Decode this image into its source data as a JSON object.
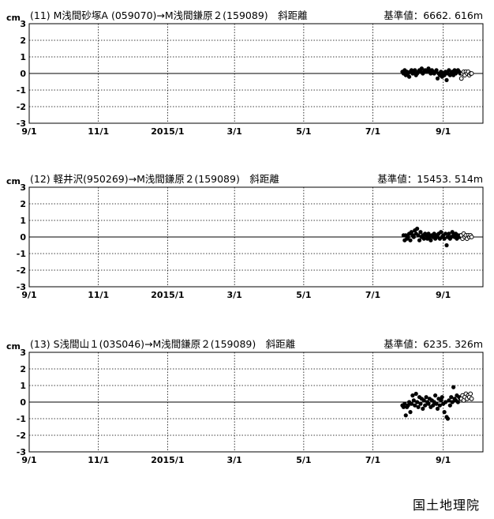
{
  "footer": "国土地理院",
  "x_tick_labels": [
    "9/1",
    "11/1",
    "2015/1",
    "3/1",
    "5/1",
    "7/1",
    "9/1"
  ],
  "chart_data": [
    {
      "type": "scatter",
      "unit": "cm",
      "header": "(11)  M浅間砂塚A (059070)→M浅間鎌原２(159089)　斜距離",
      "reference": "基準値：6662. 616m",
      "ylim": [
        -3,
        3
      ],
      "yticks": [
        3,
        2,
        1,
        0,
        -1,
        -2,
        -3
      ],
      "grid": true,
      "x_range_days": [
        0,
        400
      ],
      "series": [
        {
          "marker": "filled",
          "points": [
            [
              329,
              0.1
            ],
            [
              330,
              0.0
            ],
            [
              331,
              0.2
            ],
            [
              332,
              -0.1
            ],
            [
              333,
              0.1
            ],
            [
              334,
              0.0
            ],
            [
              335,
              -0.2
            ],
            [
              336,
              0.1
            ],
            [
              337,
              0.2
            ],
            [
              338,
              0.0
            ],
            [
              339,
              0.1
            ],
            [
              340,
              0.2
            ],
            [
              341,
              -0.1
            ],
            [
              342,
              0.0
            ],
            [
              343,
              0.1
            ],
            [
              344,
              0.2
            ],
            [
              345,
              0.1
            ],
            [
              346,
              0.3
            ],
            [
              347,
              0.0
            ],
            [
              348,
              0.1
            ],
            [
              349,
              0.2
            ],
            [
              350,
              0.1
            ],
            [
              351,
              0.2
            ],
            [
              352,
              0.3
            ],
            [
              353,
              0.1
            ],
            [
              354,
              0.0
            ],
            [
              355,
              0.2
            ],
            [
              356,
              0.1
            ],
            [
              357,
              0.0
            ],
            [
              358,
              0.1
            ],
            [
              359,
              0.2
            ],
            [
              360,
              -0.3
            ],
            [
              361,
              0.0
            ],
            [
              362,
              -0.1
            ],
            [
              363,
              0.1
            ],
            [
              364,
              -0.2
            ],
            [
              365,
              0.0
            ],
            [
              366,
              -0.1
            ],
            [
              367,
              0.1
            ],
            [
              368,
              -0.4
            ],
            [
              369,
              0.0
            ],
            [
              370,
              0.2
            ],
            [
              371,
              -0.1
            ],
            [
              372,
              0.0
            ],
            [
              373,
              0.1
            ],
            [
              374,
              -0.1
            ],
            [
              375,
              0.2
            ],
            [
              376,
              0.0
            ],
            [
              377,
              0.1
            ],
            [
              378,
              0.2
            ],
            [
              379,
              0.1
            ],
            [
              380,
              0.0
            ]
          ]
        },
        {
          "marker": "open",
          "points": [
            [
              381,
              -0.3
            ],
            [
              382,
              0.0
            ],
            [
              383,
              0.1
            ],
            [
              384,
              -0.1
            ],
            [
              385,
              0.1
            ],
            [
              386,
              0.0
            ],
            [
              387,
              0.1
            ],
            [
              388,
              -0.1
            ],
            [
              389,
              0.0
            ],
            [
              390,
              0.0
            ]
          ]
        }
      ]
    },
    {
      "type": "scatter",
      "unit": "cm",
      "header": "(12)  軽井沢(950269)→M浅間鎌原２(159089)　斜距離",
      "reference": "基準値：15453. 514m",
      "ylim": [
        -3,
        3
      ],
      "yticks": [
        3,
        2,
        1,
        0,
        -1,
        -2,
        -3
      ],
      "grid": true,
      "x_range_days": [
        0,
        400
      ],
      "series": [
        {
          "marker": "filled",
          "points": [
            [
              330,
              0.1
            ],
            [
              331,
              -0.2
            ],
            [
              332,
              0.1
            ],
            [
              333,
              -0.1
            ],
            [
              334,
              0.0
            ],
            [
              335,
              0.2
            ],
            [
              336,
              -0.2
            ],
            [
              337,
              0.3
            ],
            [
              338,
              0.1
            ],
            [
              339,
              0.0
            ],
            [
              340,
              0.4
            ],
            [
              341,
              0.2
            ],
            [
              342,
              0.5
            ],
            [
              343,
              0.1
            ],
            [
              344,
              -0.2
            ],
            [
              345,
              0.3
            ],
            [
              346,
              0.0
            ],
            [
              347,
              0.1
            ],
            [
              348,
              -0.1
            ],
            [
              349,
              0.2
            ],
            [
              350,
              0.1
            ],
            [
              351,
              -0.1
            ],
            [
              352,
              0.2
            ],
            [
              353,
              0.0
            ],
            [
              354,
              -0.2
            ],
            [
              355,
              0.1
            ],
            [
              356,
              0.0
            ],
            [
              357,
              0.2
            ],
            [
              358,
              -0.1
            ],
            [
              359,
              0.1
            ],
            [
              360,
              0.0
            ],
            [
              361,
              0.2
            ],
            [
              362,
              -0.1
            ],
            [
              363,
              0.3
            ],
            [
              364,
              0.0
            ],
            [
              365,
              0.1
            ],
            [
              366,
              -0.1
            ],
            [
              367,
              0.2
            ],
            [
              368,
              -0.5
            ],
            [
              369,
              0.0
            ],
            [
              370,
              0.2
            ],
            [
              371,
              -0.1
            ],
            [
              372,
              0.0
            ],
            [
              373,
              0.3
            ],
            [
              374,
              0.1
            ],
            [
              375,
              0.0
            ],
            [
              376,
              0.2
            ],
            [
              377,
              -0.1
            ],
            [
              378,
              0.1
            ],
            [
              379,
              0.0
            ],
            [
              380,
              0.1
            ]
          ]
        },
        {
          "marker": "open",
          "points": [
            [
              381,
              0.1
            ],
            [
              382,
              -0.1
            ],
            [
              383,
              0.2
            ],
            [
              384,
              0.0
            ],
            [
              385,
              0.1
            ],
            [
              386,
              -0.1
            ],
            [
              387,
              0.1
            ],
            [
              388,
              0.0
            ],
            [
              389,
              0.1
            ],
            [
              390,
              0.0
            ]
          ]
        }
      ]
    },
    {
      "type": "scatter",
      "unit": "cm",
      "header": "(13)  S浅間山１(03S046)→M浅間鎌原２(159089)　斜距離",
      "reference": "基準値：6235. 326m",
      "ylim": [
        -3,
        3
      ],
      "yticks": [
        3,
        2,
        1,
        0,
        -1,
        -2,
        -3
      ],
      "grid": true,
      "x_range_days": [
        0,
        400
      ],
      "series": [
        {
          "marker": "filled",
          "points": [
            [
              329,
              -0.2
            ],
            [
              330,
              -0.3
            ],
            [
              331,
              -0.1
            ],
            [
              332,
              -0.8
            ],
            [
              333,
              -0.3
            ],
            [
              334,
              -0.2
            ],
            [
              335,
              0.0
            ],
            [
              336,
              -0.6
            ],
            [
              337,
              -0.1
            ],
            [
              338,
              0.4
            ],
            [
              339,
              0.1
            ],
            [
              340,
              -0.2
            ],
            [
              341,
              0.5
            ],
            [
              342,
              0.0
            ],
            [
              343,
              -0.3
            ],
            [
              344,
              0.3
            ],
            [
              345,
              -0.1
            ],
            [
              346,
              0.2
            ],
            [
              347,
              -0.4
            ],
            [
              348,
              0.1
            ],
            [
              349,
              -0.2
            ],
            [
              350,
              0.3
            ],
            [
              351,
              0.0
            ],
            [
              352,
              -0.1
            ],
            [
              353,
              0.2
            ],
            [
              354,
              -0.3
            ],
            [
              355,
              0.1
            ],
            [
              356,
              -0.2
            ],
            [
              357,
              0.0
            ],
            [
              358,
              0.4
            ],
            [
              359,
              -0.1
            ],
            [
              360,
              -0.4
            ],
            [
              361,
              0.2
            ],
            [
              362,
              -0.2
            ],
            [
              363,
              0.1
            ],
            [
              364,
              0.3
            ],
            [
              365,
              -0.1
            ],
            [
              366,
              -0.6
            ],
            [
              367,
              0.0
            ],
            [
              368,
              -0.9
            ],
            [
              369,
              -1.0
            ],
            [
              370,
              0.1
            ],
            [
              371,
              -0.2
            ],
            [
              372,
              0.3
            ],
            [
              373,
              0.0
            ],
            [
              374,
              0.9
            ],
            [
              375,
              0.2
            ],
            [
              376,
              0.1
            ],
            [
              377,
              0.4
            ],
            [
              378,
              0.0
            ],
            [
              379,
              0.3
            ],
            [
              380,
              0.2
            ]
          ]
        },
        {
          "marker": "open",
          "points": [
            [
              381,
              0.2
            ],
            [
              382,
              0.4
            ],
            [
              383,
              0.1
            ],
            [
              384,
              0.3
            ],
            [
              385,
              0.5
            ],
            [
              386,
              0.2
            ],
            [
              387,
              0.4
            ],
            [
              388,
              0.3
            ],
            [
              389,
              0.5
            ],
            [
              390,
              0.2
            ]
          ]
        }
      ]
    }
  ]
}
